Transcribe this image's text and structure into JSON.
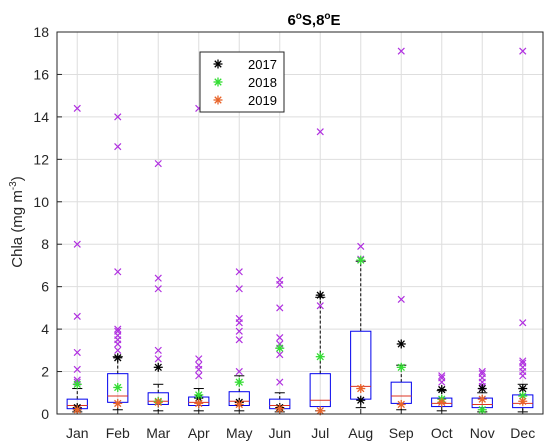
{
  "chart_data": {
    "type": "box",
    "title": {
      "main": "6",
      "sup1": "o",
      "mid": "S,8",
      "sup2": "o",
      "end": "E"
    },
    "ylabel": {
      "main": "Chla (mg m",
      "sup": "-3",
      "end": ")"
    },
    "xlabel": "",
    "ylim": [
      0,
      18
    ],
    "yticks": [
      0,
      2,
      4,
      6,
      8,
      10,
      12,
      14,
      16,
      18
    ],
    "grid": true,
    "legend_position": "top-center",
    "categories": [
      "Jan",
      "Feb",
      "Mar",
      "Apr",
      "May",
      "Jun",
      "Jul",
      "Aug",
      "Sep",
      "Oct",
      "Nov",
      "Dec"
    ],
    "boxes": [
      {
        "whisker_low": 0.1,
        "q1": 0.25,
        "median": 0.4,
        "q3": 0.7,
        "whisker_high": 1.2
      },
      {
        "whisker_low": 0.2,
        "q1": 0.55,
        "median": 0.85,
        "q3": 1.9,
        "whisker_high": 2.7
      },
      {
        "whisker_low": 0.15,
        "q1": 0.45,
        "median": 0.6,
        "q3": 1.0,
        "whisker_high": 1.4
      },
      {
        "whisker_low": 0.15,
        "q1": 0.4,
        "median": 0.55,
        "q3": 0.8,
        "whisker_high": 1.2
      },
      {
        "whisker_low": 0.15,
        "q1": 0.4,
        "median": 0.6,
        "q3": 1.05,
        "whisker_high": 1.8
      },
      {
        "whisker_low": 0.1,
        "q1": 0.25,
        "median": 0.4,
        "q3": 0.7,
        "whisker_high": 1.0
      },
      {
        "whisker_low": 0.15,
        "q1": 0.35,
        "median": 0.65,
        "q3": 1.9,
        "whisker_high": 5.5
      },
      {
        "whisker_low": 0.3,
        "q1": 0.7,
        "median": 1.3,
        "q3": 3.9,
        "whisker_high": 7.2
      },
      {
        "whisker_low": 0.2,
        "q1": 0.5,
        "median": 0.85,
        "q3": 1.5,
        "whisker_high": 2.3
      },
      {
        "whisker_low": 0.15,
        "q1": 0.35,
        "median": 0.5,
        "q3": 0.75,
        "whisker_high": 1.1
      },
      {
        "whisker_low": 0.1,
        "q1": 0.3,
        "median": 0.45,
        "q3": 0.75,
        "whisker_high": 1.0
      },
      {
        "whisker_low": 0.1,
        "q1": 0.3,
        "median": 0.5,
        "q3": 0.9,
        "whisker_high": 1.4
      }
    ],
    "outliers": [
      [
        1.5,
        1.6,
        2.1,
        2.9,
        4.6,
        8.0,
        14.4
      ],
      [
        3.0,
        3.3,
        3.5,
        3.7,
        3.9,
        4.0,
        6.7,
        12.6,
        14.0
      ],
      [
        2.6,
        3.0,
        5.9,
        6.4,
        11.8
      ],
      [
        1.8,
        2.1,
        2.3,
        2.6,
        14.4
      ],
      [
        2.0,
        3.5,
        3.9,
        4.3,
        4.5,
        5.9,
        6.7
      ],
      [
        1.5,
        2.8,
        3.3,
        3.6,
        5.0,
        6.1,
        6.3
      ],
      [
        5.1,
        13.3
      ],
      [
        7.3,
        7.9
      ],
      [
        5.4,
        17.1
      ],
      [
        1.5,
        1.7,
        1.8
      ],
      [
        1.3,
        1.5,
        1.7,
        1.9,
        2.0
      ],
      [
        1.8,
        2.0,
        2.2,
        2.4,
        2.5,
        4.3,
        17.1
      ]
    ],
    "series": [
      {
        "name": "2017",
        "color": "#000000",
        "values": [
          0.3,
          2.65,
          2.2,
          0.75,
          0.55,
          0.3,
          5.6,
          0.65,
          3.3,
          1.15,
          1.2,
          1.2
        ]
      },
      {
        "name": "2018",
        "color": "#33dd33",
        "values": [
          1.4,
          1.25,
          0.6,
          0.9,
          1.5,
          3.1,
          2.7,
          7.25,
          2.2,
          0.7,
          0.2,
          0.85
        ]
      },
      {
        "name": "2019",
        "color": "#e8642a",
        "values": [
          0.2,
          0.5,
          0.55,
          0.5,
          0.45,
          0.25,
          0.15,
          1.2,
          0.45,
          0.55,
          0.7,
          0.6
        ]
      }
    ],
    "colors": {
      "box": "#0000ee",
      "median": "#dd3322",
      "whisker": "#000000",
      "outlier": "#b030e0"
    }
  }
}
